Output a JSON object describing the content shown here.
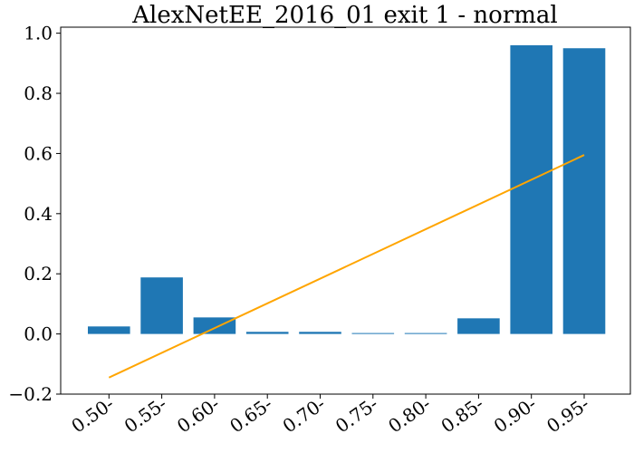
{
  "chart_data": {
    "type": "bar",
    "title": "AlexNetEE_2016_01 exit 1 - normal",
    "categories": [
      "0.50-",
      "0.55-",
      "0.60-",
      "0.65-",
      "0.70-",
      "0.75-",
      "0.80-",
      "0.85-",
      "0.90-",
      "0.95-"
    ],
    "values": [
      0.025,
      0.188,
      0.055,
      0.007,
      0.007,
      0.003,
      0.003,
      0.052,
      0.96,
      0.95
    ],
    "trend_line": {
      "start": -0.145,
      "end": 0.595
    },
    "ylim": [
      -0.2,
      1.02
    ],
    "yticks": [
      -0.2,
      0.0,
      0.2,
      0.4,
      0.6,
      0.8,
      1.0
    ],
    "ytick_labels": [
      "−0.2",
      "0.0",
      "0.2",
      "0.4",
      "0.6",
      "0.8",
      "1.0"
    ],
    "xlabel": "",
    "ylabel": "",
    "grid": false,
    "bar_color": "#1f77b4",
    "trend_color": "#ffa500"
  }
}
